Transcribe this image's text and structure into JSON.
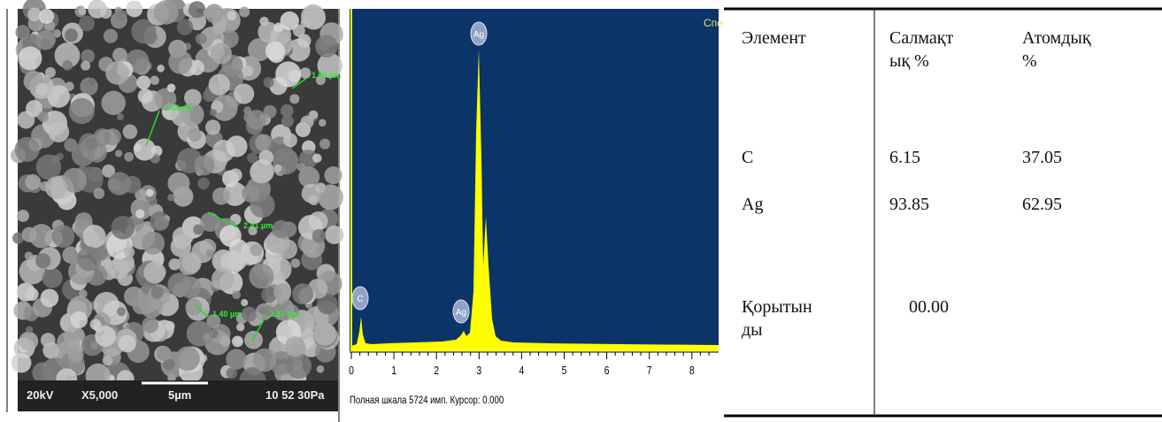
{
  "sem": {
    "scale_bar": "5µm",
    "voltage": "20kV",
    "magnification": "X5,000",
    "info": "10 52 30Pa",
    "measurements": [
      "1.58 µm",
      "1.60 µm",
      "2.41 µm",
      "1.40 µm",
      "1.57 µm"
    ]
  },
  "spectrum": {
    "title": "Спе",
    "peaks": [
      "Ag",
      "C",
      "Ag"
    ],
    "ticks": [
      "0",
      "1",
      "2",
      "3",
      "4",
      "5",
      "6",
      "7",
      "8"
    ],
    "footer": "Полная шкала 5724 имп. Курсор: 0.000"
  },
  "table": {
    "header": [
      "Элемент",
      "Салмақтық %",
      "Атомдық %"
    ],
    "rows": [
      [
        "C",
        "6.15",
        "37.05"
      ],
      [
        "Ag",
        "93.85",
        "62.95"
      ],
      [
        "Қорытынды",
        "00.00",
        ""
      ]
    ]
  }
}
